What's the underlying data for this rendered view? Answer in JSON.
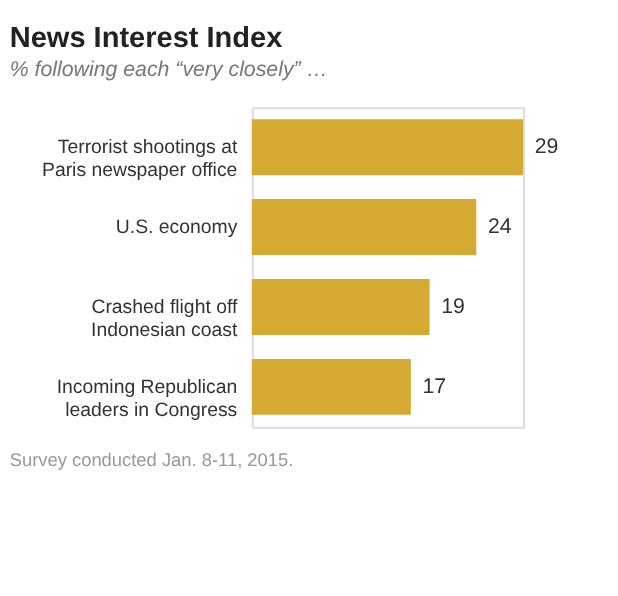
{
  "chart_data": {
    "type": "bar",
    "orientation": "horizontal",
    "title": "News Interest Index",
    "subtitle": "% following each “very closely” …",
    "categories": [
      "Terrorist shootings at Paris newspaper office",
      "U.S. economy",
      "Crashed flight off Indonesian coast",
      "Incoming Republican leaders in Congress"
    ],
    "values": [
      29,
      24,
      19,
      17
    ],
    "color": "#d4aa33",
    "data_labels": true,
    "annotations": [
      "Survey conducted Jan. 8-11, 2015."
    ]
  }
}
